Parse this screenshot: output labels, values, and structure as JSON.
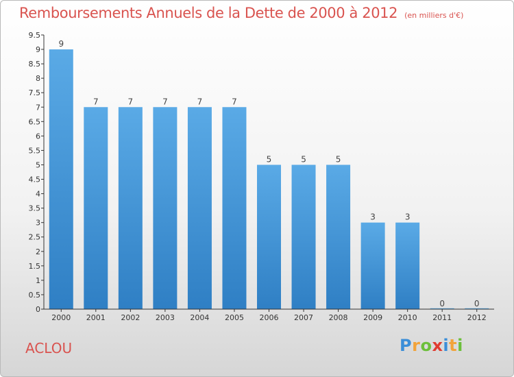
{
  "title": "Remboursements Annuels de la Dette de 2000 à 2012",
  "subtitle": "(en milliers d'€)",
  "commune": "ACLOU",
  "logo": {
    "letters": [
      "P",
      "r",
      "o",
      "x",
      "i",
      "t",
      "i"
    ],
    "colors": [
      "#3b8ed8",
      "#f2a33a",
      "#6cbf3b",
      "#e03c31",
      "#3b8ed8",
      "#f2a33a",
      "#6cbf3b"
    ]
  },
  "colors": {
    "bar": "#5aaae6",
    "bar_dark": "#2f7fc4",
    "title": "#d9534f",
    "axis": "#333333"
  },
  "chart_data": {
    "type": "bar",
    "categories": [
      "2000",
      "2001",
      "2002",
      "2003",
      "2004",
      "2005",
      "2006",
      "2007",
      "2008",
      "2009",
      "2010",
      "2011",
      "2012"
    ],
    "values": [
      9,
      7,
      7,
      7,
      7,
      7,
      5,
      5,
      5,
      3,
      3,
      0,
      0
    ],
    "data_labels": [
      "9",
      "7",
      "7",
      "7",
      "7",
      "7",
      "5",
      "5",
      "5",
      "3",
      "3",
      "0",
      "0"
    ],
    "ylim": [
      0,
      9.5
    ],
    "yticks": [
      "0",
      "0.5",
      "1",
      "1.5",
      "2",
      "2.5",
      "3",
      "3.5",
      "4",
      "4.5",
      "5",
      "5.5",
      "6",
      "6.5",
      "7",
      "7.5",
      "8",
      "8.5",
      "9",
      "9.5"
    ],
    "grid": false,
    "xlabel": "",
    "ylabel": ""
  }
}
